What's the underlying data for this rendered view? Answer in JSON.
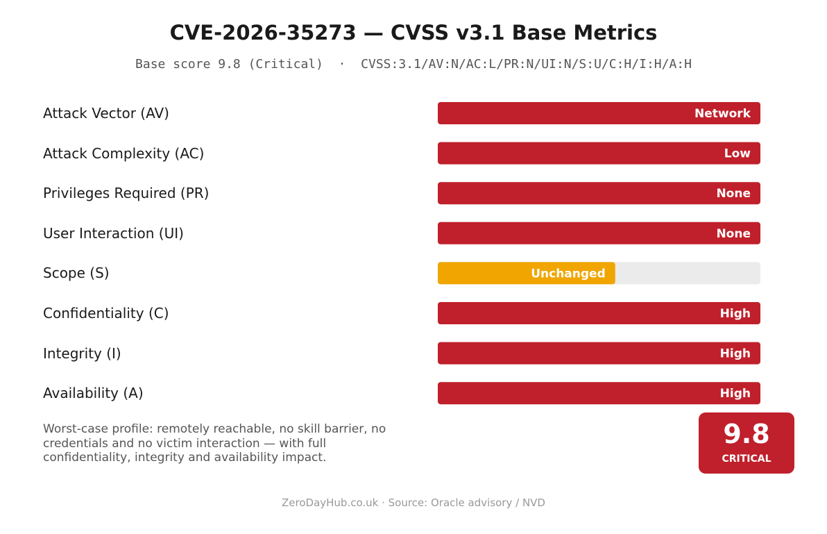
{
  "chart_data": {
    "type": "bar",
    "orientation": "horizontal",
    "title": "CVE-2026-35273 — CVSS v3.1 Base Metrics",
    "subtitle": "Base score 9.8 (Critical)  ·  CVSS:3.1/AV:N/AC:L/PR:N/UI:N/S:U/C:H/I:H/A:H",
    "categories": [
      "Attack Vector (AV)",
      "Attack Complexity (AC)",
      "Privileges Required (PR)",
      "User Interaction (UI)",
      "Scope (S)",
      "Confidentiality (C)",
      "Integrity (I)",
      "Availability (A)"
    ],
    "value_labels": [
      "Network",
      "Low",
      "None",
      "None",
      "Unchanged",
      "High",
      "High",
      "High"
    ],
    "values": [
      1.0,
      1.0,
      1.0,
      1.0,
      0.55,
      1.0,
      1.0,
      1.0
    ],
    "xlim": [
      0,
      1
    ],
    "bar_colors": [
      "#c0202b",
      "#c0202b",
      "#c0202b",
      "#c0202b",
      "#f0a500",
      "#c0202b",
      "#c0202b",
      "#c0202b"
    ],
    "track_color": "#ebebeb",
    "grid": false,
    "legend": "none"
  },
  "note": "Worst-case profile: remotely reachable, no skill barrier, no credentials and no victim interaction — with full confidentiality, integrity and availability impact.",
  "badge": {
    "score": "9.8",
    "level": "CRITICAL",
    "color": "#c0202b"
  },
  "footer": "ZeroDayHub.co.uk  ·  Source: Oracle advisory / NVD"
}
